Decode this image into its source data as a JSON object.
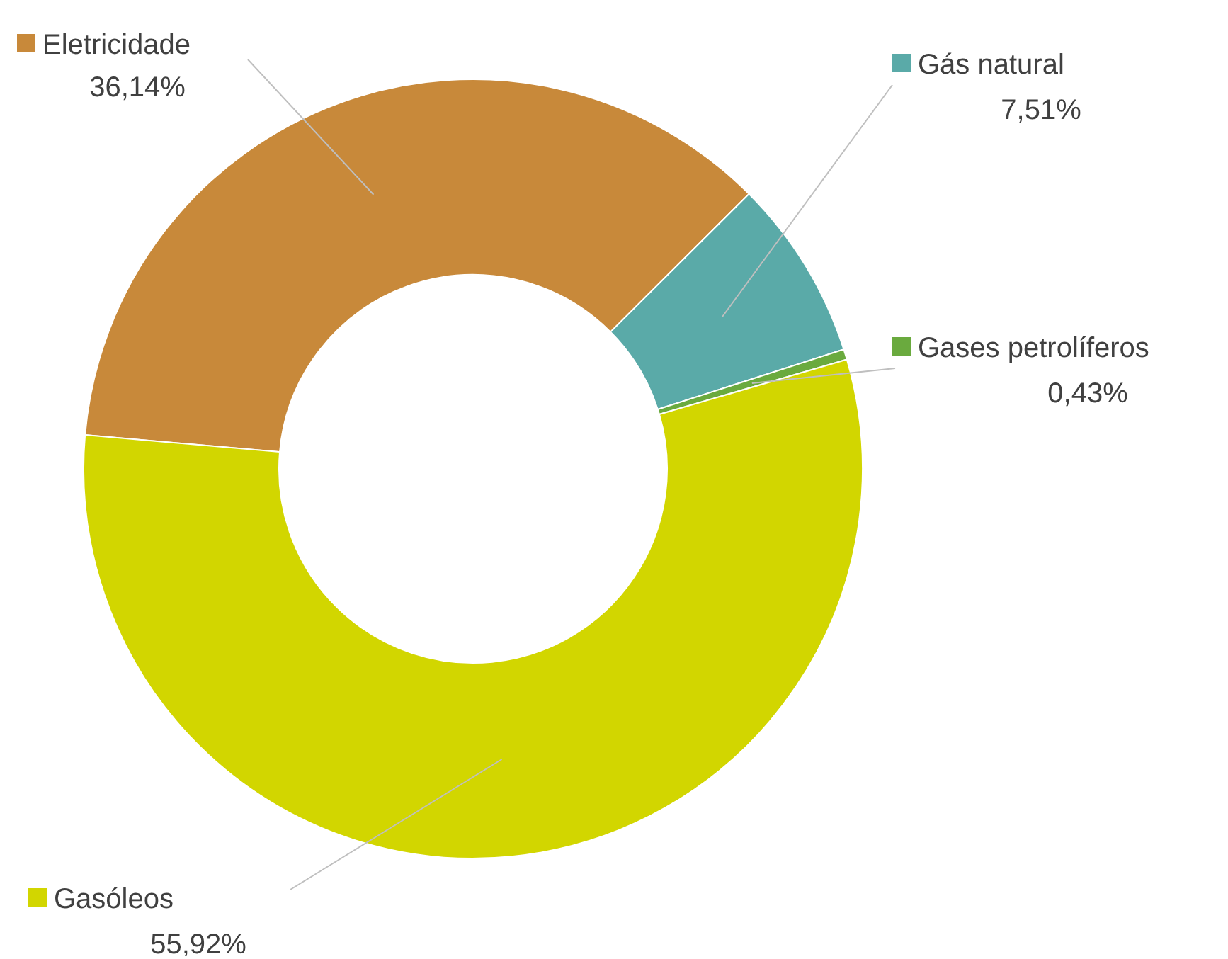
{
  "chart_data": {
    "type": "donut",
    "categories": [
      "Eletricidade",
      "Gás natural",
      "Gases petrolíferos",
      "Gasóleos"
    ],
    "values": [
      36.14,
      7.51,
      0.43,
      55.92
    ],
    "value_labels": [
      "36,14%",
      "7,51%",
      "0,43%",
      "55,92%"
    ],
    "colors": [
      "#c8893a",
      "#5aaaa8",
      "#6aaa3e",
      "#d2d600"
    ],
    "legend": "bottom right"
  }
}
